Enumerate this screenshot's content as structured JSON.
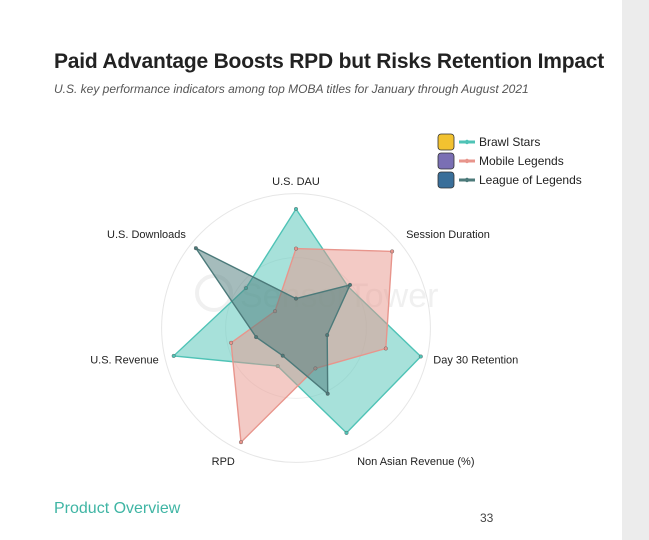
{
  "header": {
    "title": "Paid Advantage Boosts RPD but Risks Retention Impact",
    "subtitle": "U.S. key performance indicators among top MOBA titles for January through August 2021"
  },
  "footer": {
    "section": "Product Overview",
    "page_number": "33"
  },
  "watermark": "SensorTower",
  "chart_data": {
    "type": "radar",
    "axes": [
      "U.S. DAU",
      "Session Duration",
      "Day 30 Retention",
      "Non Asian Revenue (%)",
      "RPD",
      "U.S. Revenue",
      "U.S. Downloads"
    ],
    "range": [
      0,
      1
    ],
    "legend_position": "top-right",
    "series": [
      {
        "name": "Brawl Stars",
        "icon": "brawl-stars-icon",
        "color": "#4fc3b6",
        "values": [
          0.93,
          0.52,
          1.0,
          0.91,
          0.33,
          0.98,
          0.5
        ]
      },
      {
        "name": "Mobile Legends",
        "icon": "mobile-legends-icon",
        "color": "#e8958c",
        "values": [
          0.62,
          0.96,
          0.72,
          0.35,
          0.99,
          0.52,
          0.21
        ]
      },
      {
        "name": "League of Legends",
        "icon": "league-of-legends-icon",
        "color": "#4c7a7a",
        "values": [
          0.23,
          0.54,
          0.25,
          0.57,
          0.24,
          0.32,
          1.0
        ]
      }
    ]
  }
}
